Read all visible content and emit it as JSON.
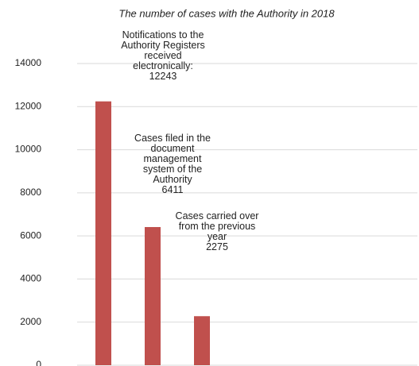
{
  "chart_data": {
    "type": "bar",
    "title": "The number of cases with the Authority in 2018",
    "categories": [
      "Notifications to the Authority Registers received electronically:",
      "Cases filed in the document management system of the Authority",
      "Cases carried over from the previous year"
    ],
    "values": [
      12243,
      6411,
      2275
    ],
    "color": "#c0504d",
    "ylim": [
      0,
      14000
    ],
    "yticks": [
      0,
      2000,
      4000,
      6000,
      8000,
      10000,
      12000,
      14000
    ],
    "grid": true
  }
}
